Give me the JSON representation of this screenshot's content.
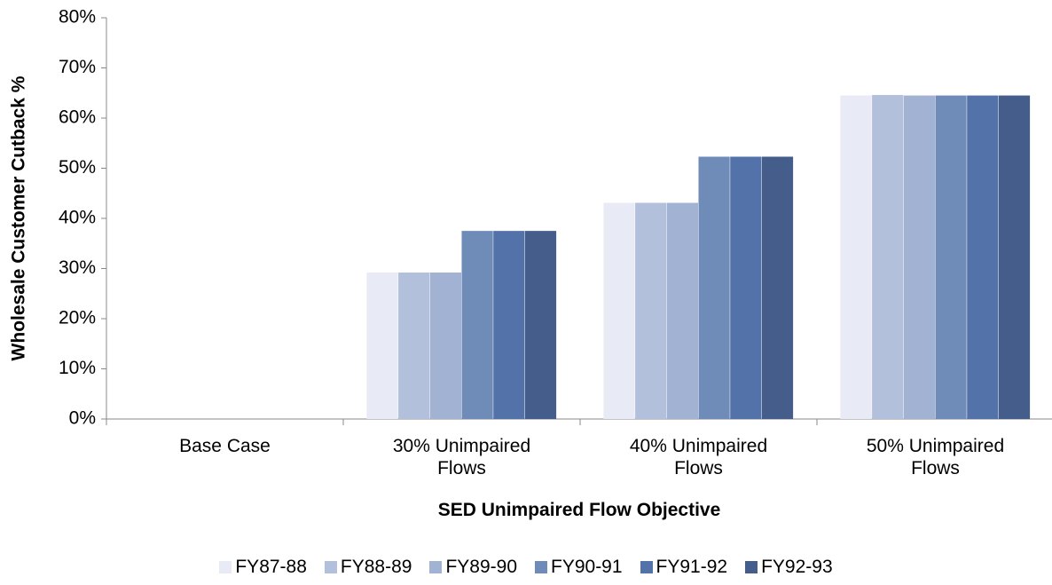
{
  "chart_data": {
    "type": "bar",
    "y_label": "Wholesale Customer Cutback %",
    "x_label": "SED Unimpaired Flow Objective",
    "categories": [
      "Base Case",
      "30% Unimpaired Flows",
      "40% Unimpaired Flows",
      "50% Unimpaired Flows"
    ],
    "series": [
      {
        "name": "FY87-88",
        "color": "#e8ebf5",
        "values": [
          0,
          29.2,
          43.1,
          64.5
        ]
      },
      {
        "name": "FY88-89",
        "color": "#b3c0dc",
        "values": [
          0,
          29.2,
          43.1,
          64.6
        ]
      },
      {
        "name": "FY89-90",
        "color": "#a1b2d2",
        "values": [
          0,
          29.2,
          43.1,
          64.5
        ]
      },
      {
        "name": "FY90-91",
        "color": "#6f8bb8",
        "values": [
          0,
          37.5,
          52.3,
          64.5
        ]
      },
      {
        "name": "FY91-92",
        "color": "#5372aa",
        "values": [
          0,
          37.5,
          52.3,
          64.5
        ]
      },
      {
        "name": "FY92-93",
        "color": "#445d8a",
        "values": [
          0,
          37.5,
          52.3,
          64.5
        ]
      }
    ],
    "ylim": [
      0,
      80
    ],
    "yticks": [
      {
        "value": 0,
        "label": "0%"
      },
      {
        "value": 10,
        "label": "10%"
      },
      {
        "value": 20,
        "label": "20%"
      },
      {
        "value": 30,
        "label": "30%"
      },
      {
        "value": 40,
        "label": "40%"
      },
      {
        "value": 50,
        "label": "50%"
      },
      {
        "value": 60,
        "label": "60%"
      },
      {
        "value": 70,
        "label": "70%"
      },
      {
        "value": 80,
        "label": "80%"
      }
    ],
    "grid": false,
    "legend": "bottom"
  }
}
